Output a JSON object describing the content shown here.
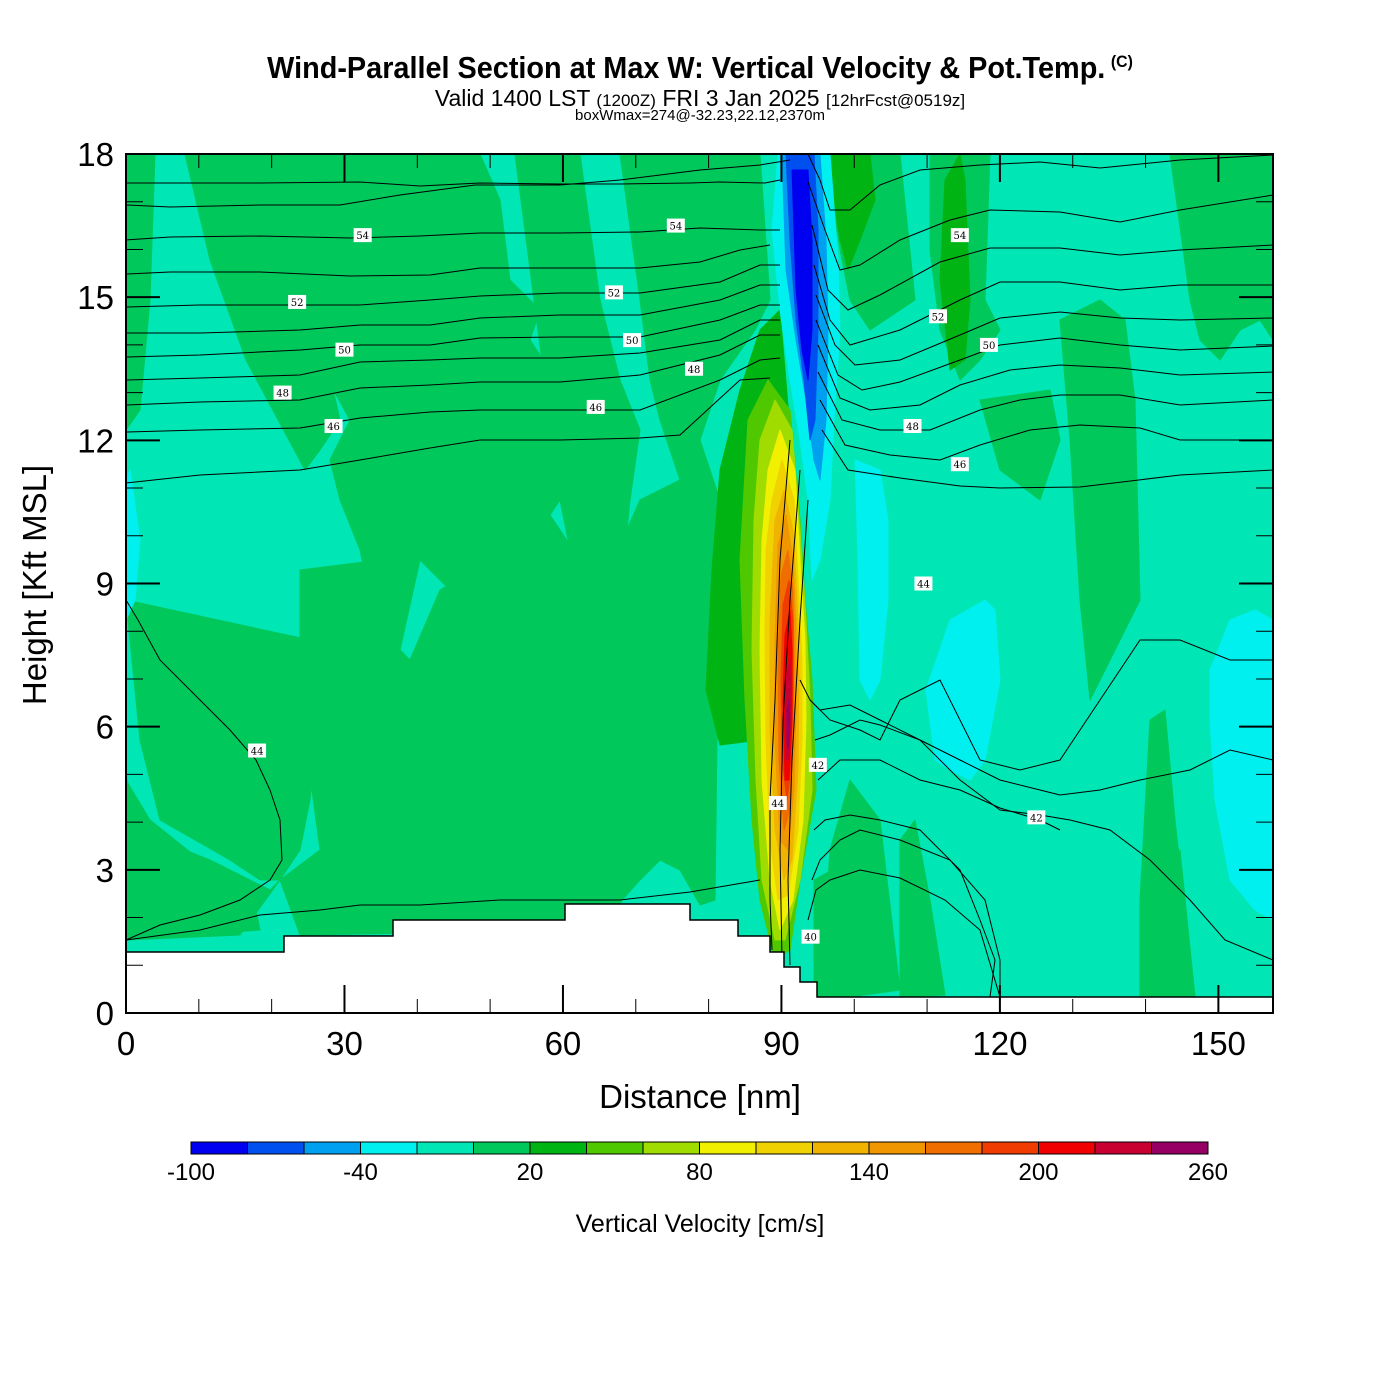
{
  "header": {
    "title": "Wind-Parallel Section at Max W: Vertical Velocity & Pot.Temp.",
    "copyright": "(C)",
    "valid_prefix": "Valid 1400 LST",
    "valid_utc": "(1200Z)",
    "valid_date": "FRI 3 Jan 2025",
    "forecast": "[12hrFcst@0519z]",
    "subtitle": "boxWmax=274@-32.23,22.12,2370m"
  },
  "chart_data": {
    "type": "contour-section",
    "title": "Wind-Parallel Section at Max W: Vertical Velocity & Pot.Temp.",
    "xlabel": "Distance [nm]",
    "ylabel": "Height [Kft MSL]",
    "xlim": [
      0,
      157.5
    ],
    "ylim": [
      0,
      18
    ],
    "x_ticks": [
      0,
      30,
      60,
      90,
      120,
      150
    ],
    "x_tick_labels": [
      "0",
      "30",
      "60",
      "90",
      "120",
      "150"
    ],
    "y_ticks": [
      0,
      3,
      6,
      9,
      12,
      15,
      18
    ],
    "y_tick_labels": [
      "0",
      "3",
      "6",
      "9",
      "12",
      "15",
      "18"
    ],
    "max_vertical_velocity": 274,
    "max_location": "-32.23,22.12,2370m",
    "colorbar": {
      "title": "Vertical Velocity [cm/s]",
      "levels": [
        -100,
        -80,
        -60,
        -40,
        -20,
        0,
        20,
        40,
        60,
        80,
        100,
        120,
        140,
        160,
        180,
        200,
        220,
        240,
        260
      ],
      "colors": [
        "#0000f0",
        "#0050f0",
        "#00a0f0",
        "#00f0f0",
        "#00e6b4",
        "#00c85a",
        "#00b414",
        "#50c800",
        "#a0dc00",
        "#f0f000",
        "#f0d200",
        "#f0b400",
        "#f09600",
        "#f06e00",
        "#f03c00",
        "#f00000",
        "#c80032",
        "#960064"
      ],
      "tick_values": [
        -100,
        -40,
        20,
        80,
        140,
        200,
        260
      ],
      "tick_labels": [
        "-100",
        "-40",
        "20",
        "80",
        "140",
        "200",
        "260"
      ]
    },
    "contour_labels": [
      {
        "text": "54",
        "x": 32.5,
        "y": 16.3
      },
      {
        "text": "54",
        "x": 75.5,
        "y": 16.5
      },
      {
        "text": "54",
        "x": 114.5,
        "y": 16.3
      },
      {
        "text": "52",
        "x": 23.5,
        "y": 14.9
      },
      {
        "text": "52",
        "x": 67,
        "y": 15.1
      },
      {
        "text": "52",
        "x": 111.5,
        "y": 14.6
      },
      {
        "text": "50",
        "x": 30,
        "y": 13.9
      },
      {
        "text": "50",
        "x": 69.5,
        "y": 14.1
      },
      {
        "text": "50",
        "x": 118.5,
        "y": 14.0
      },
      {
        "text": "48",
        "x": 21.5,
        "y": 13.0
      },
      {
        "text": "48",
        "x": 78,
        "y": 13.5
      },
      {
        "text": "48",
        "x": 108,
        "y": 12.3
      },
      {
        "text": "46",
        "x": 28.5,
        "y": 12.3
      },
      {
        "text": "46",
        "x": 64.5,
        "y": 12.7
      },
      {
        "text": "46",
        "x": 114.5,
        "y": 11.5
      },
      {
        "text": "44",
        "x": 109.5,
        "y": 9.0
      },
      {
        "text": "44",
        "x": 18,
        "y": 5.5
      },
      {
        "text": "44",
        "x": 89.5,
        "y": 4.4
      },
      {
        "text": "42",
        "x": 95,
        "y": 5.2
      },
      {
        "text": "42",
        "x": 125,
        "y": 4.1
      },
      {
        "text": "40",
        "x": 94,
        "y": 1.6
      }
    ],
    "theta_contour_levels": [
      40,
      41,
      42,
      43,
      44,
      45,
      46,
      47,
      48,
      49,
      50,
      51,
      52,
      53,
      54,
      55
    ]
  }
}
